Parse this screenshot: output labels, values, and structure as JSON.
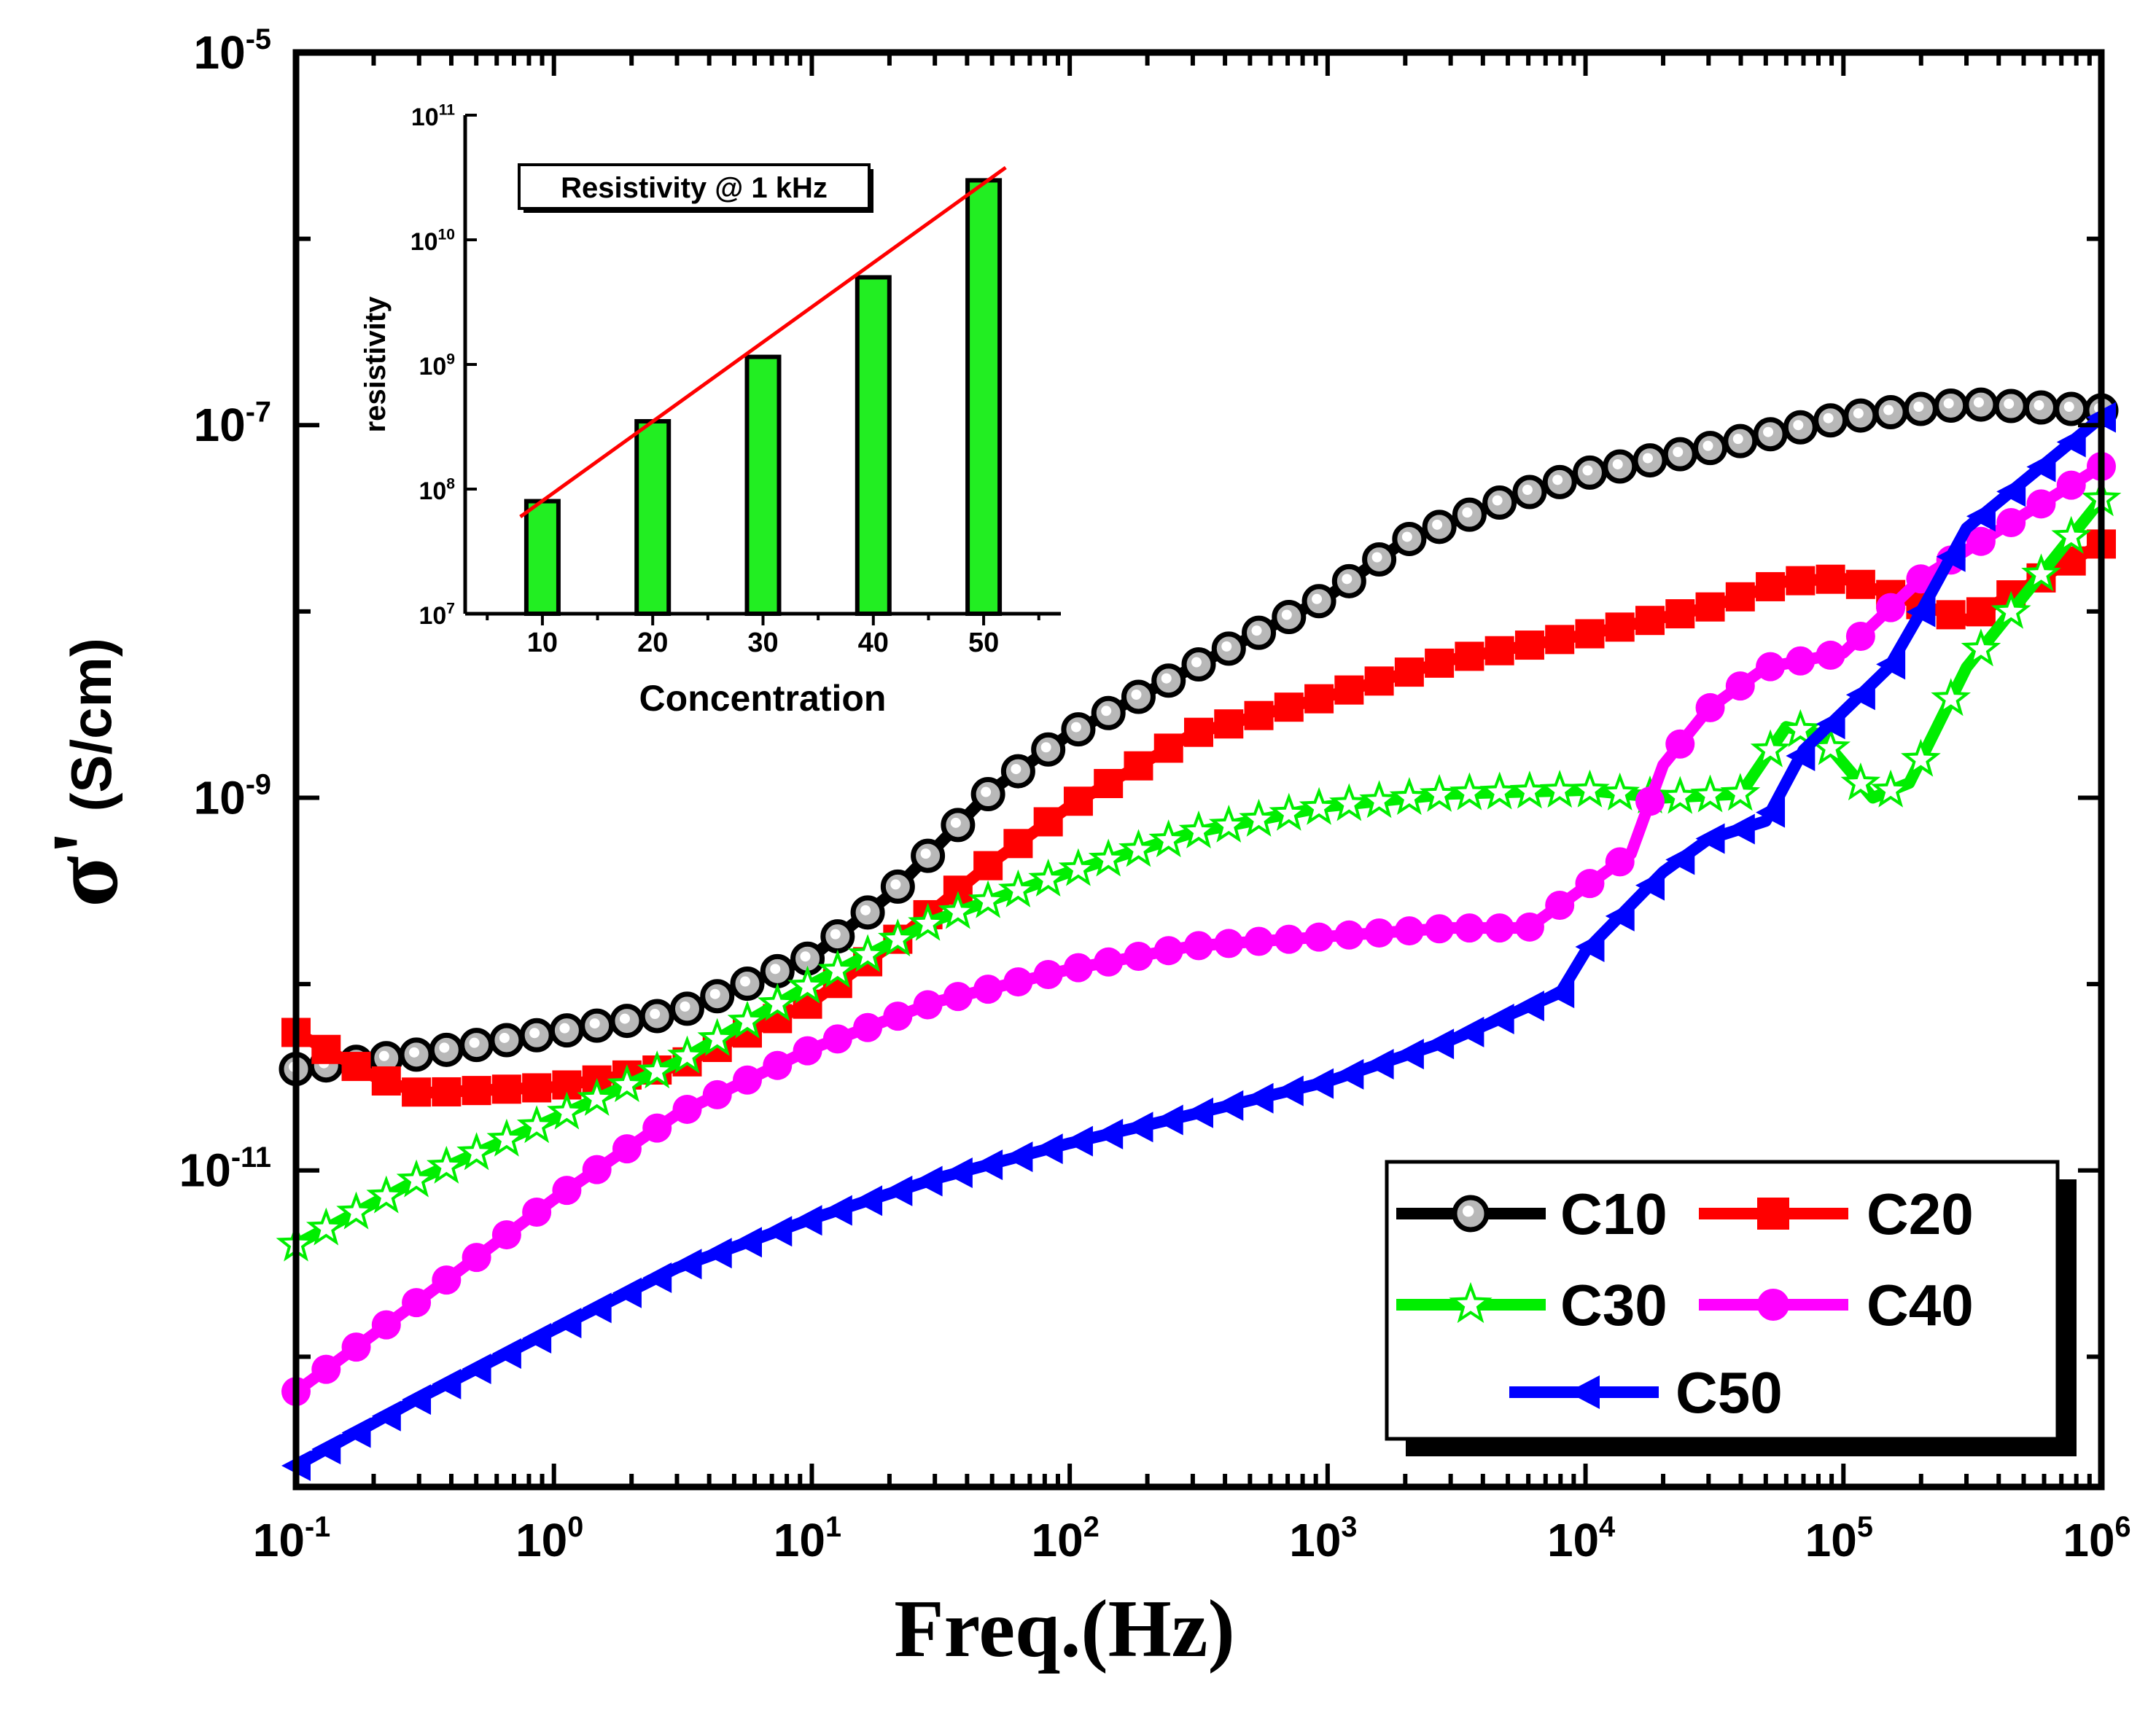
{
  "chart_data": [
    {
      "type": "line",
      "title": "",
      "xlabel": "Freq.(Hz)",
      "ylabel_symbol": "σ'",
      "ylabel_unit": "(S/cm)",
      "x_scale": "log",
      "y_scale": "log",
      "xlim": [
        0.1,
        1000000
      ],
      "ylim": [
        2e-13,
        1e-05
      ],
      "x_ticks": [
        {
          "value": 0.1,
          "base": "10",
          "exp": "-1"
        },
        {
          "value": 1,
          "base": "10",
          "exp": "0"
        },
        {
          "value": 10,
          "base": "10",
          "exp": "1"
        },
        {
          "value": 100,
          "base": "10",
          "exp": "2"
        },
        {
          "value": 1000,
          "base": "10",
          "exp": "3"
        },
        {
          "value": 10000,
          "base": "10",
          "exp": "4"
        },
        {
          "value": 100000,
          "base": "10",
          "exp": "5"
        },
        {
          "value": 1000000,
          "base": "10",
          "exp": "6"
        }
      ],
      "y_ticks": [
        {
          "value": 1e-11,
          "base": "10",
          "exp": "-11"
        },
        {
          "value": 1e-09,
          "base": "10",
          "exp": "-9"
        },
        {
          "value": 1e-07,
          "base": "10",
          "exp": "-7"
        },
        {
          "value": 1e-05,
          "base": "10",
          "exp": "-5"
        }
      ],
      "grid": false,
      "legend_position": "bottom-right",
      "series": [
        {
          "name": "C10",
          "color": "#000000",
          "marker": "circle-gray",
          "x": [
            0.1,
            0.3,
            1,
            3,
            10,
            20,
            50,
            100,
            300,
            1000,
            2000,
            5000,
            10000,
            30000,
            100000,
            300000,
            1000000
          ],
          "y": [
            3.5e-11,
            4.2e-11,
            5.5e-11,
            7e-11,
            1.4e-10,
            3e-10,
            1.1e-09,
            2.2e-09,
            5e-09,
            1.2e-08,
            2.4e-08,
            4e-08,
            5.5e-08,
            7.5e-08,
            1.1e-07,
            1.3e-07,
            1.2e-07
          ]
        },
        {
          "name": "C20",
          "color": "#ff0000",
          "marker": "square",
          "x": [
            0.1,
            0.2,
            0.3,
            1,
            3,
            10,
            20,
            50,
            100,
            300,
            1000,
            3000,
            10000,
            30000,
            60000,
            100000,
            300000,
            1000000
          ],
          "y": [
            5.5e-11,
            3.2e-11,
            2.6e-11,
            2.8e-11,
            3.6e-11,
            8e-11,
            1.6e-10,
            4.5e-10,
            9e-10,
            2.2e-09,
            3.5e-09,
            5.5e-09,
            7.5e-09,
            1.05e-08,
            1.45e-08,
            1.5e-08,
            9e-09,
            2.3e-08
          ]
        },
        {
          "name": "C30",
          "color": "#00ee00",
          "marker": "star-open",
          "x": [
            0.1,
            0.3,
            1,
            3,
            10,
            30,
            100,
            300,
            1000,
            3000,
            10000,
            20000,
            40000,
            60000,
            80000,
            130000,
            180000,
            300000,
            1000000
          ],
          "y": [
            4e-12,
            9e-12,
            1.9e-11,
            3.8e-11,
            1e-10,
            2.2e-10,
            4e-10,
            6.5e-10,
            9e-10,
            1.05e-09,
            1.1e-09,
            1e-09,
            1.05e-09,
            2.4e-09,
            2.2e-09,
            1e-09,
            1.2e-09,
            5e-09,
            4e-08
          ]
        },
        {
          "name": "C40",
          "color": "#ff00ff",
          "marker": "circle",
          "x": [
            0.1,
            0.3,
            1,
            3,
            10,
            30,
            100,
            300,
            1000,
            3000,
            6000,
            15000,
            20000,
            30000,
            50000,
            100000,
            200000,
            1000000
          ],
          "y": [
            6.5e-13,
            2e-12,
            7e-12,
            2e-11,
            4.5e-11,
            8e-11,
            1.2e-10,
            1.6e-10,
            1.8e-10,
            2e-10,
            2e-10,
            5e-10,
            1.5e-09,
            3e-09,
            5e-09,
            6e-09,
            1.5e-08,
            6e-08
          ]
        },
        {
          "name": "C50",
          "color": "#0000ff",
          "marker": "triangle-left",
          "x": [
            0.1,
            0.3,
            1,
            3,
            10,
            30,
            100,
            300,
            1000,
            3000,
            8000,
            10000,
            20000,
            30000,
            50000,
            70000,
            150000,
            200000,
            300000,
            1000000
          ],
          "y": [
            2.6e-13,
            6e-13,
            1.4e-12,
            3e-12,
            5.5e-12,
            9e-12,
            1.4e-11,
            2e-11,
            3e-11,
            5e-11,
            9e-11,
            1.5e-10,
            4e-10,
            6e-10,
            7.5e-10,
            1.8e-09,
            5e-09,
            1e-08,
            2.8e-08,
            1.1e-07
          ]
        }
      ]
    },
    {
      "type": "bar",
      "title": "Resistivity @ 1 kHz",
      "xlabel": "Concentration",
      "ylabel": "resistivity",
      "y_scale": "log",
      "ylim": [
        10000000,
        100000000000
      ],
      "categories": [
        "10",
        "20",
        "30",
        "40",
        "50"
      ],
      "values": [
        80000000,
        350000000,
        1150000000,
        5000000000,
        30000000000
      ],
      "bar_color": "#22ee22",
      "trend_line": {
        "color": "#ff0000",
        "from": [
          8,
          60000000
        ],
        "to": [
          52,
          38000000000
        ]
      },
      "y_ticks": [
        {
          "value": 10000000,
          "base": "10",
          "exp": "7"
        },
        {
          "value": 100000000,
          "base": "10",
          "exp": "8"
        },
        {
          "value": 1000000000,
          "base": "10",
          "exp": "9"
        },
        {
          "value": 10000000000,
          "base": "10",
          "exp": "10"
        },
        {
          "value": 100000000000,
          "base": "10",
          "exp": "11"
        }
      ]
    }
  ]
}
